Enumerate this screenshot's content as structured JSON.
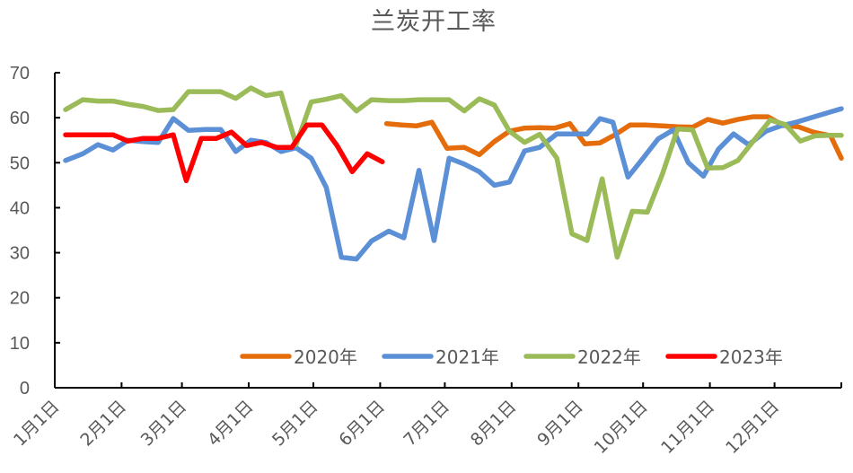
{
  "chart_data": {
    "type": "line",
    "title": "兰炭开工率",
    "xlabel": "",
    "ylabel": "",
    "ylim": [
      0,
      70
    ],
    "yticks": [
      0,
      10,
      20,
      30,
      40,
      50,
      60,
      70
    ],
    "xlim_days": [
      0,
      365
    ],
    "xticks": [
      {
        "label": "1月1日",
        "day": 0
      },
      {
        "label": "2月1日",
        "day": 31
      },
      {
        "label": "3月1日",
        "day": 59
      },
      {
        "label": "4月1日",
        "day": 90
      },
      {
        "label": "5月1日",
        "day": 120
      },
      {
        "label": "6月1日",
        "day": 151
      },
      {
        "label": "7月1日",
        "day": 181
      },
      {
        "label": "8月1日",
        "day": 212
      },
      {
        "label": "9月1日",
        "day": 243
      },
      {
        "label": "10月1日",
        "day": 273
      },
      {
        "label": "11月1日",
        "day": 304
      },
      {
        "label": "12月1日",
        "day": 334
      }
    ],
    "grid": false,
    "legend_position": "bottom-inside",
    "series": [
      {
        "name": "2020年",
        "color": "#E46C0A",
        "points": [
          [
            154,
            58.7
          ],
          [
            161,
            58.4
          ],
          [
            168,
            58.2
          ],
          [
            175,
            59.0
          ],
          [
            182,
            53.2
          ],
          [
            190,
            53.4
          ],
          [
            197,
            51.8
          ],
          [
            204,
            54.7
          ],
          [
            211,
            57.0
          ],
          [
            218,
            57.7
          ],
          [
            225,
            57.8
          ],
          [
            232,
            57.7
          ],
          [
            239,
            58.7
          ],
          [
            246,
            54.2
          ],
          [
            253,
            54.4
          ],
          [
            260,
            56.2
          ],
          [
            267,
            58.4
          ],
          [
            274,
            58.4
          ],
          [
            282,
            58.2
          ],
          [
            289,
            58.0
          ],
          [
            296,
            57.9
          ],
          [
            303,
            59.6
          ],
          [
            310,
            58.8
          ],
          [
            317,
            59.6
          ],
          [
            324,
            60.2
          ],
          [
            331,
            60.2
          ],
          [
            338,
            58.3
          ],
          [
            345,
            58.0
          ],
          [
            352,
            56.8
          ],
          [
            360,
            56.0
          ],
          [
            365,
            51.0
          ]
        ]
      },
      {
        "name": "2021年",
        "color": "#5B8FD6",
        "points": [
          [
            5,
            50.5
          ],
          [
            13,
            52.0
          ],
          [
            20,
            54.0
          ],
          [
            27,
            52.8
          ],
          [
            34,
            55.0
          ],
          [
            41,
            54.7
          ],
          [
            48,
            54.5
          ],
          [
            55,
            59.8
          ],
          [
            62,
            57.2
          ],
          [
            70,
            57.4
          ],
          [
            77,
            57.4
          ],
          [
            84,
            52.5
          ],
          [
            91,
            55.0
          ],
          [
            98,
            54.5
          ],
          [
            105,
            52.5
          ],
          [
            112,
            53.3
          ],
          [
            119,
            51.0
          ],
          [
            126,
            44.5
          ],
          [
            133,
            29.0
          ],
          [
            140,
            28.6
          ],
          [
            147,
            32.6
          ],
          [
            155,
            34.8
          ],
          [
            162,
            33.3
          ],
          [
            169,
            48.3
          ],
          [
            176,
            32.7
          ],
          [
            183,
            51.0
          ],
          [
            190,
            49.7
          ],
          [
            197,
            48.0
          ],
          [
            204,
            45.0
          ],
          [
            211,
            45.7
          ],
          [
            218,
            52.6
          ],
          [
            225,
            53.4
          ],
          [
            233,
            56.4
          ],
          [
            240,
            56.4
          ],
          [
            247,
            56.4
          ],
          [
            253,
            59.8
          ],
          [
            259,
            59.0
          ],
          [
            266,
            46.8
          ],
          [
            273,
            51.0
          ],
          [
            280,
            55.3
          ],
          [
            287,
            57.3
          ],
          [
            294,
            50.0
          ],
          [
            301,
            47.0
          ],
          [
            308,
            53.0
          ],
          [
            315,
            56.4
          ],
          [
            322,
            54.0
          ],
          [
            330,
            57.0
          ],
          [
            337,
            58.2
          ],
          [
            344,
            59.0
          ],
          [
            351,
            60.0
          ],
          [
            358,
            61.0
          ],
          [
            365,
            62.0
          ]
        ]
      },
      {
        "name": "2022年",
        "color": "#9BBB59",
        "points": [
          [
            5,
            61.8
          ],
          [
            13,
            64.0
          ],
          [
            20,
            63.7
          ],
          [
            27,
            63.7
          ],
          [
            34,
            63.0
          ],
          [
            41,
            62.5
          ],
          [
            48,
            61.6
          ],
          [
            55,
            61.8
          ],
          [
            62,
            65.8
          ],
          [
            70,
            65.8
          ],
          [
            77,
            65.8
          ],
          [
            84,
            64.3
          ],
          [
            91,
            66.6
          ],
          [
            98,
            64.9
          ],
          [
            105,
            65.5
          ],
          [
            112,
            54.0
          ],
          [
            119,
            63.5
          ],
          [
            126,
            64.1
          ],
          [
            133,
            64.9
          ],
          [
            140,
            61.5
          ],
          [
            147,
            64.0
          ],
          [
            155,
            63.8
          ],
          [
            162,
            63.8
          ],
          [
            169,
            64.0
          ],
          [
            176,
            64.0
          ],
          [
            183,
            64.0
          ],
          [
            190,
            61.5
          ],
          [
            197,
            64.2
          ],
          [
            204,
            62.8
          ],
          [
            211,
            57.0
          ],
          [
            218,
            54.5
          ],
          [
            225,
            56.3
          ],
          [
            233,
            51.0
          ],
          [
            240,
            34.2
          ],
          [
            247,
            32.7
          ],
          [
            254,
            46.4
          ],
          [
            261,
            29.0
          ],
          [
            268,
            39.2
          ],
          [
            275,
            39.0
          ],
          [
            282,
            47.5
          ],
          [
            289,
            57.5
          ],
          [
            296,
            57.3
          ],
          [
            303,
            48.8
          ],
          [
            310,
            48.9
          ],
          [
            317,
            50.5
          ],
          [
            325,
            55.3
          ],
          [
            332,
            59.5
          ],
          [
            339,
            58.5
          ],
          [
            346,
            54.8
          ],
          [
            353,
            56.0
          ],
          [
            360,
            56.1
          ],
          [
            365,
            56.1
          ]
        ]
      },
      {
        "name": "2023年",
        "color": "#FF0000",
        "points": [
          [
            5,
            56.2
          ],
          [
            13,
            56.2
          ],
          [
            20,
            56.2
          ],
          [
            27,
            56.2
          ],
          [
            34,
            54.8
          ],
          [
            41,
            55.4
          ],
          [
            48,
            55.4
          ],
          [
            55,
            56.2
          ],
          [
            61,
            46.0
          ],
          [
            68,
            55.4
          ],
          [
            75,
            55.4
          ],
          [
            82,
            56.8
          ],
          [
            89,
            53.8
          ],
          [
            96,
            54.5
          ],
          [
            103,
            53.4
          ],
          [
            110,
            53.4
          ],
          [
            117,
            58.4
          ],
          [
            124,
            58.4
          ],
          [
            131,
            53.8
          ],
          [
            138,
            48.0
          ],
          [
            145,
            52.0
          ],
          [
            152,
            50.2
          ]
        ]
      }
    ]
  },
  "legend": {
    "items": [
      {
        "label": "2020年",
        "color": "#E46C0A"
      },
      {
        "label": "2021年",
        "color": "#5B8FD6"
      },
      {
        "label": "2022年",
        "color": "#9BBB59"
      },
      {
        "label": "2023年",
        "color": "#FF0000"
      }
    ]
  }
}
